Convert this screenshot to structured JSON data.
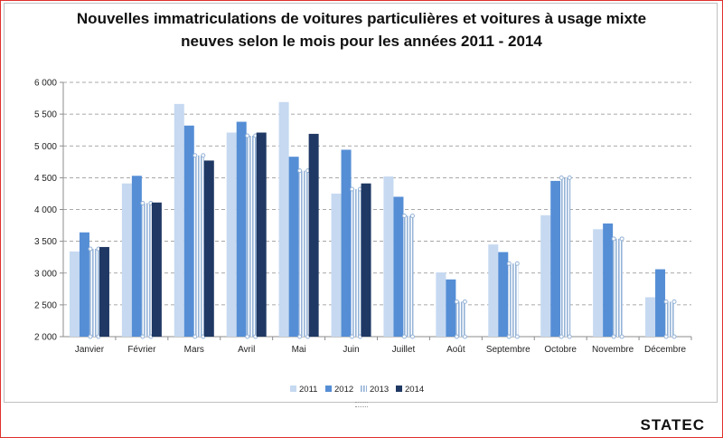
{
  "brand": "STATEC",
  "chart_data": {
    "type": "bar",
    "title_line1": "Nouvelles immatriculations de voitures particulières et voitures à usage mixte",
    "title_line2": "neuves selon le mois pour les années 2011 - 2014",
    "categories": [
      "Janvier",
      "Février",
      "Mars",
      "Avril",
      "Mai",
      "Juin",
      "Juillet",
      "Août",
      "Septembre",
      "Octobre",
      "Novembre",
      "Décembre"
    ],
    "series": [
      {
        "name": "2011",
        "color": "#c6d9f1",
        "values": [
          3340,
          4410,
          5660,
          5210,
          5690,
          4250,
          4520,
          3010,
          3450,
          3910,
          3690,
          2620
        ]
      },
      {
        "name": "2012",
        "color": "#558ed5",
        "values": [
          3640,
          4530,
          5320,
          5380,
          4830,
          4940,
          4200,
          2900,
          3330,
          4450,
          3780,
          3060
        ]
      },
      {
        "name": "2013",
        "color": "#95b3d7",
        "values": [
          3380,
          4100,
          4850,
          5160,
          4610,
          4320,
          3900,
          2550,
          3150,
          4500,
          3540,
          2550
        ]
      },
      {
        "name": "2014",
        "color": "#1f3864",
        "values": [
          3410,
          4110,
          4770,
          5210,
          5190,
          4410,
          null,
          null,
          null,
          null,
          null,
          null
        ]
      }
    ],
    "ylim": [
      2000,
      6000
    ],
    "yticks": [
      "2 000",
      "2 500",
      "3 000",
      "3 500",
      "4 000",
      "4 500",
      "5 000",
      "5 500",
      "6 000"
    ],
    "ytick_values": [
      2000,
      2500,
      3000,
      3500,
      4000,
      4500,
      5000,
      5500,
      6000
    ],
    "grid": true,
    "legend_position": "bottom",
    "xlabel": "",
    "ylabel": ""
  }
}
